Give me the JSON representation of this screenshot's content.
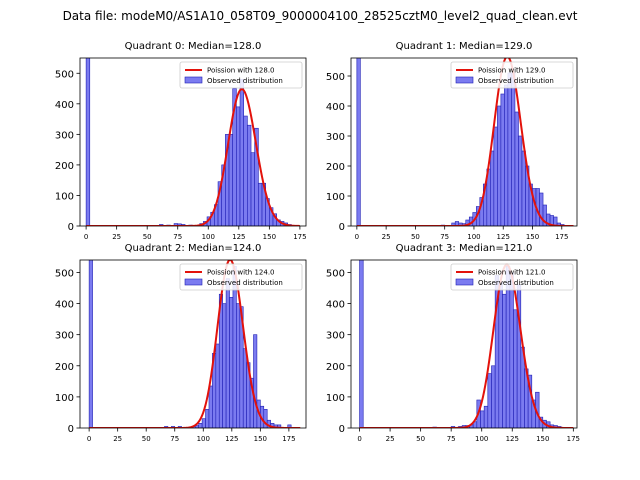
{
  "figure_title": "Data file: modeM0/AS1A10_058T09_9000004100_28525cztM0_level2_quad_clean.evt",
  "colors": {
    "histogram_fill": "#7b7bf0",
    "histogram_edge": "#1f1fb4",
    "poisson_line": "#e3120b"
  },
  "chart_data": [
    {
      "type": "bar",
      "panel_title": "Quadrant 0: Median=128.0",
      "quadrant": 0,
      "median": 128.0,
      "xlim": [
        -5,
        180
      ],
      "ylim": [
        0,
        550
      ],
      "xticks": [
        0,
        25,
        50,
        75,
        100,
        125,
        150,
        175
      ],
      "yticks": [
        0,
        100,
        200,
        300,
        400,
        500
      ],
      "legend_position": "top-right",
      "legend": {
        "line": "Poission with 128.0",
        "bars": "Observed distribution"
      },
      "bin_width": 3,
      "bins": [
        {
          "x": 0,
          "count": 560
        },
        {
          "x": 60,
          "count": 5
        },
        {
          "x": 66,
          "count": 3
        },
        {
          "x": 72,
          "count": 8
        },
        {
          "x": 75,
          "count": 7
        },
        {
          "x": 78,
          "count": 5
        },
        {
          "x": 84,
          "count": 3
        },
        {
          "x": 87,
          "count": 2
        },
        {
          "x": 93,
          "count": 8
        },
        {
          "x": 96,
          "count": 15
        },
        {
          "x": 99,
          "count": 30
        },
        {
          "x": 102,
          "count": 45
        },
        {
          "x": 105,
          "count": 70
        },
        {
          "x": 108,
          "count": 145
        },
        {
          "x": 111,
          "count": 200
        },
        {
          "x": 114,
          "count": 300
        },
        {
          "x": 117,
          "count": 300
        },
        {
          "x": 120,
          "count": 450
        },
        {
          "x": 123,
          "count": 390
        },
        {
          "x": 126,
          "count": 480
        },
        {
          "x": 129,
          "count": 360
        },
        {
          "x": 132,
          "count": 330
        },
        {
          "x": 135,
          "count": 240
        },
        {
          "x": 138,
          "count": 320
        },
        {
          "x": 141,
          "count": 140
        },
        {
          "x": 144,
          "count": 140
        },
        {
          "x": 147,
          "count": 90
        },
        {
          "x": 150,
          "count": 60
        },
        {
          "x": 153,
          "count": 40
        },
        {
          "x": 156,
          "count": 20
        },
        {
          "x": 159,
          "count": 15
        },
        {
          "x": 162,
          "count": 10
        },
        {
          "x": 165,
          "count": 5
        }
      ],
      "poisson": {
        "mean": 128.0,
        "x_range": [
          0,
          175
        ]
      }
    },
    {
      "type": "bar",
      "panel_title": "Quadrant 1: Median=129.0",
      "quadrant": 1,
      "median": 129.0,
      "xlim": [
        -5,
        188
      ],
      "ylim": [
        0,
        560
      ],
      "xticks": [
        0,
        25,
        50,
        75,
        100,
        125,
        150,
        175
      ],
      "yticks": [
        0,
        100,
        200,
        300,
        400,
        500
      ],
      "legend_position": "top-right",
      "legend": {
        "line": "Poission with 129.0",
        "bars": "Observed distribution"
      },
      "bin_width": 3,
      "bins": [
        {
          "x": 0,
          "count": 575
        },
        {
          "x": 72,
          "count": 3
        },
        {
          "x": 81,
          "count": 10
        },
        {
          "x": 84,
          "count": 15
        },
        {
          "x": 87,
          "count": 10
        },
        {
          "x": 90,
          "count": 8
        },
        {
          "x": 93,
          "count": 20
        },
        {
          "x": 96,
          "count": 30
        },
        {
          "x": 99,
          "count": 45
        },
        {
          "x": 102,
          "count": 65
        },
        {
          "x": 105,
          "count": 95
        },
        {
          "x": 108,
          "count": 140
        },
        {
          "x": 111,
          "count": 190
        },
        {
          "x": 114,
          "count": 250
        },
        {
          "x": 117,
          "count": 330
        },
        {
          "x": 120,
          "count": 400
        },
        {
          "x": 123,
          "count": 440
        },
        {
          "x": 126,
          "count": 470
        },
        {
          "x": 129,
          "count": 510
        },
        {
          "x": 132,
          "count": 510
        },
        {
          "x": 135,
          "count": 380
        },
        {
          "x": 138,
          "count": 300
        },
        {
          "x": 141,
          "count": 250
        },
        {
          "x": 144,
          "count": 200
        },
        {
          "x": 147,
          "count": 140
        },
        {
          "x": 150,
          "count": 125
        },
        {
          "x": 153,
          "count": 125
        },
        {
          "x": 156,
          "count": 110
        },
        {
          "x": 159,
          "count": 70
        },
        {
          "x": 162,
          "count": 40
        },
        {
          "x": 165,
          "count": 35
        },
        {
          "x": 168,
          "count": 30
        },
        {
          "x": 171,
          "count": 10
        },
        {
          "x": 174,
          "count": 5
        }
      ],
      "poisson": {
        "mean": 129.0,
        "x_range": [
          0,
          185
        ]
      }
    },
    {
      "type": "bar",
      "panel_title": "Quadrant 2: Median=124.0",
      "quadrant": 2,
      "median": 124.0,
      "xlim": [
        -8,
        190
      ],
      "ylim": [
        0,
        540
      ],
      "xticks": [
        0,
        25,
        50,
        75,
        100,
        125,
        150,
        175
      ],
      "yticks": [
        0,
        100,
        200,
        300,
        400,
        500
      ],
      "legend_position": "top-right",
      "legend": {
        "line": "Poission with 124.0",
        "bars": "Observed distribution"
      },
      "bin_width": 3,
      "bins": [
        {
          "x": 0,
          "count": 545
        },
        {
          "x": 66,
          "count": 5
        },
        {
          "x": 72,
          "count": 5
        },
        {
          "x": 78,
          "count": 5
        },
        {
          "x": 90,
          "count": 5
        },
        {
          "x": 93,
          "count": 8
        },
        {
          "x": 96,
          "count": 15
        },
        {
          "x": 99,
          "count": 30
        },
        {
          "x": 102,
          "count": 60
        },
        {
          "x": 105,
          "count": 135
        },
        {
          "x": 108,
          "count": 240
        },
        {
          "x": 111,
          "count": 270
        },
        {
          "x": 114,
          "count": 430
        },
        {
          "x": 117,
          "count": 400
        },
        {
          "x": 120,
          "count": 480
        },
        {
          "x": 123,
          "count": 420
        },
        {
          "x": 126,
          "count": 520
        },
        {
          "x": 129,
          "count": 400
        },
        {
          "x": 132,
          "count": 390
        },
        {
          "x": 135,
          "count": 255
        },
        {
          "x": 138,
          "count": 210
        },
        {
          "x": 141,
          "count": 160
        },
        {
          "x": 144,
          "count": 300
        },
        {
          "x": 147,
          "count": 90
        },
        {
          "x": 150,
          "count": 70
        },
        {
          "x": 153,
          "count": 60
        },
        {
          "x": 156,
          "count": 25
        },
        {
          "x": 159,
          "count": 15
        },
        {
          "x": 162,
          "count": 10
        },
        {
          "x": 165,
          "count": 10
        },
        {
          "x": 174,
          "count": 10
        }
      ],
      "poisson": {
        "mean": 124.0,
        "x_range": [
          0,
          185
        ]
      }
    },
    {
      "type": "bar",
      "panel_title": "Quadrant 3: Median=121.0",
      "quadrant": 3,
      "median": 121.0,
      "xlim": [
        -7,
        178
      ],
      "ylim": [
        0,
        540
      ],
      "xticks": [
        0,
        25,
        50,
        75,
        100,
        125,
        150,
        175
      ],
      "yticks": [
        0,
        100,
        200,
        300,
        400,
        500
      ],
      "legend_position": "top-right",
      "legend": {
        "line": "Poission with 121.0",
        "bars": "Observed distribution"
      },
      "bin_width": 3,
      "bins": [
        {
          "x": 0,
          "count": 545
        },
        {
          "x": 60,
          "count": 3
        },
        {
          "x": 75,
          "count": 5
        },
        {
          "x": 81,
          "count": 5
        },
        {
          "x": 84,
          "count": 8
        },
        {
          "x": 87,
          "count": 8
        },
        {
          "x": 90,
          "count": 10
        },
        {
          "x": 93,
          "count": 20
        },
        {
          "x": 96,
          "count": 90
        },
        {
          "x": 99,
          "count": 55
        },
        {
          "x": 102,
          "count": 70
        },
        {
          "x": 105,
          "count": 175
        },
        {
          "x": 108,
          "count": 200
        },
        {
          "x": 111,
          "count": 490
        },
        {
          "x": 114,
          "count": 470
        },
        {
          "x": 117,
          "count": 430
        },
        {
          "x": 120,
          "count": 520
        },
        {
          "x": 123,
          "count": 500
        },
        {
          "x": 126,
          "count": 380
        },
        {
          "x": 129,
          "count": 460
        },
        {
          "x": 132,
          "count": 260
        },
        {
          "x": 135,
          "count": 190
        },
        {
          "x": 138,
          "count": 170
        },
        {
          "x": 141,
          "count": 90
        },
        {
          "x": 144,
          "count": 115
        },
        {
          "x": 147,
          "count": 35
        },
        {
          "x": 150,
          "count": 25
        },
        {
          "x": 153,
          "count": 20
        },
        {
          "x": 156,
          "count": 10
        },
        {
          "x": 159,
          "count": 8
        },
        {
          "x": 162,
          "count": 5
        }
      ],
      "poisson": {
        "mean": 121.0,
        "x_range": [
          0,
          175
        ]
      }
    }
  ]
}
